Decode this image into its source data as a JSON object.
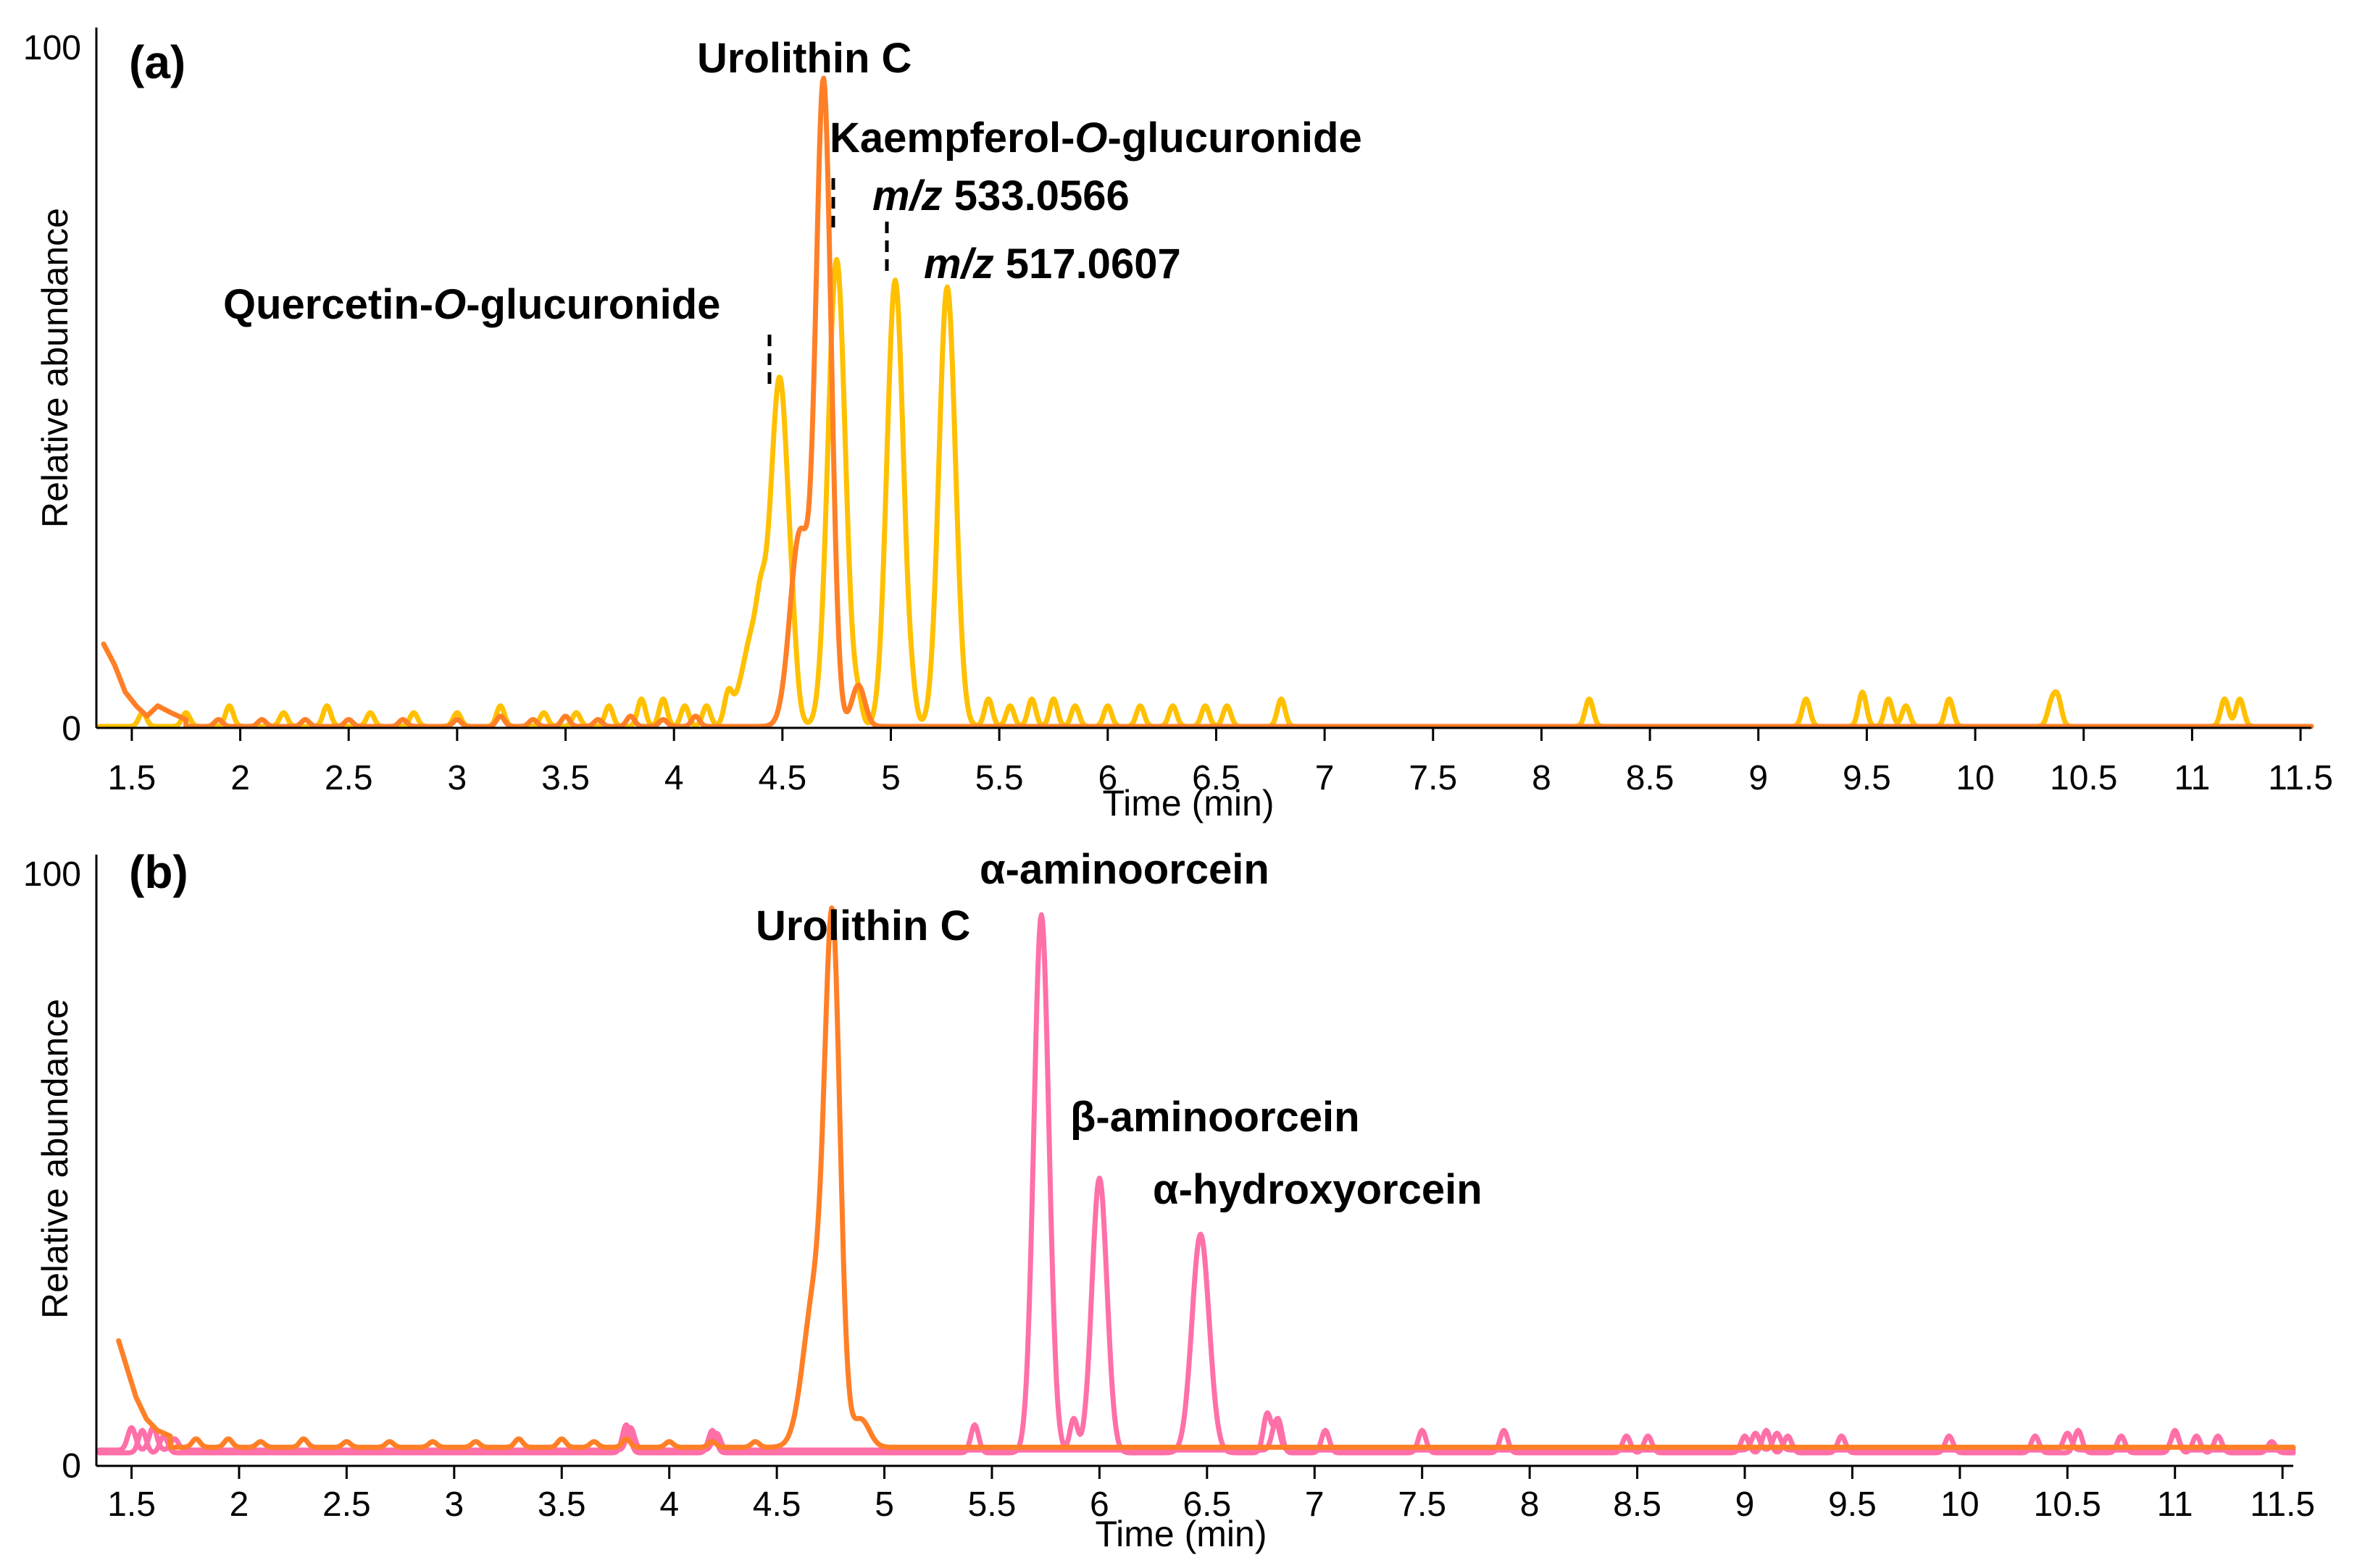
{
  "chart_data": [
    {
      "panel": "(a)",
      "type": "line",
      "xlabel": "Time (min)",
      "ylabel": "Relative abundance",
      "xlim": [
        1.35,
        11.55
      ],
      "ylim": [
        0,
        100
      ],
      "x_ticks": [
        "1.5",
        "2",
        "2.5",
        "3",
        "3.5",
        "4",
        "4.5",
        "5",
        "5.5",
        "6",
        "6.5",
        "7",
        "7.5",
        "8",
        "8.5",
        "9",
        "9.5",
        "10",
        "10.5",
        "11",
        "11.5"
      ],
      "y_ticks": [
        "0",
        "100"
      ],
      "grid": false,
      "colors": {
        "yellow": "#FFC000",
        "orange": "#FF7F27"
      },
      "series": [
        {
          "color": "#FFC000",
          "baseline": 0,
          "noise": [
            [
              1.55,
              2
            ],
            [
              1.75,
              2
            ],
            [
              1.95,
              3
            ],
            [
              2.2,
              2
            ],
            [
              2.4,
              3
            ],
            [
              2.6,
              2
            ],
            [
              2.8,
              2
            ],
            [
              3.0,
              2
            ],
            [
              3.2,
              3
            ],
            [
              3.4,
              2
            ],
            [
              3.55,
              2
            ],
            [
              3.7,
              3
            ],
            [
              3.85,
              4
            ],
            [
              3.95,
              4
            ],
            [
              4.05,
              3
            ],
            [
              4.15,
              3
            ],
            [
              4.25,
              4
            ],
            [
              4.4,
              4
            ],
            [
              4.55,
              3
            ],
            [
              4.85,
              3
            ],
            [
              5.1,
              2
            ],
            [
              5.45,
              4
            ],
            [
              5.55,
              3
            ],
            [
              5.65,
              4
            ],
            [
              5.75,
              4
            ],
            [
              5.85,
              3
            ],
            [
              6.0,
              3
            ],
            [
              6.15,
              3
            ],
            [
              6.3,
              3
            ],
            [
              6.45,
              3
            ],
            [
              6.55,
              3
            ],
            [
              6.8,
              4
            ],
            [
              8.22,
              4
            ],
            [
              9.22,
              4
            ],
            [
              9.48,
              5
            ],
            [
              9.6,
              4
            ],
            [
              9.68,
              3
            ],
            [
              9.88,
              4
            ],
            [
              10.35,
              3
            ],
            [
              10.38,
              4
            ],
            [
              11.15,
              4
            ],
            [
              11.22,
              4
            ]
          ],
          "peaks": [
            [
              4.38,
              15,
              0.06
            ],
            [
              4.49,
              48,
              0.04
            ],
            [
              4.75,
              68,
              0.04
            ],
            [
              5.02,
              65,
              0.038
            ],
            [
              5.26,
              64,
              0.038
            ]
          ]
        },
        {
          "color": "#FF7F27",
          "baseline": 0,
          "start": [
            [
              1.37,
              12
            ],
            [
              1.42,
              9
            ],
            [
              1.47,
              5
            ],
            [
              1.52,
              3
            ],
            [
              1.57,
              1.5
            ],
            [
              1.62,
              3
            ],
            [
              1.68,
              2
            ],
            [
              1.75,
              1
            ]
          ],
          "noise": [
            [
              1.9,
              1
            ],
            [
              2.1,
              1
            ],
            [
              2.3,
              1
            ],
            [
              2.5,
              1
            ],
            [
              2.75,
              1
            ],
            [
              3.0,
              1
            ],
            [
              3.2,
              1.5
            ],
            [
              3.35,
              1
            ],
            [
              3.5,
              1.5
            ],
            [
              3.65,
              1
            ],
            [
              3.8,
              1.5
            ],
            [
              3.95,
              1
            ],
            [
              4.1,
              1.5
            ]
          ],
          "peaks": [
            [
              4.58,
              28,
              0.045
            ],
            [
              4.69,
              93,
              0.035
            ],
            [
              4.85,
              6,
              0.03
            ]
          ]
        }
      ],
      "annotations": [
        {
          "text": "Urolithin C"
        },
        {
          "text_parts": [
            "Kaempferol-",
            "O",
            "-glucuronide"
          ],
          "italic": [
            false,
            true,
            false
          ]
        },
        {
          "text_parts": [
            "m/z",
            " 533.0566"
          ],
          "italic": [
            true,
            false
          ]
        },
        {
          "text_parts": [
            "m/z",
            " 517.0607"
          ],
          "italic": [
            true,
            false
          ]
        },
        {
          "text_parts": [
            "Quercetin-",
            "O",
            "-glucuronide"
          ],
          "italic": [
            false,
            true,
            false
          ]
        }
      ]
    },
    {
      "panel": "(b)",
      "type": "line",
      "xlabel": "Time (min)",
      "ylabel": "Relative abundance",
      "xlim": [
        1.35,
        11.55
      ],
      "ylim": [
        0,
        100
      ],
      "x_ticks": [
        "1.5",
        "2",
        "2.5",
        "3",
        "3.5",
        "4",
        "4.5",
        "5",
        "5.5",
        "6",
        "6.5",
        "7",
        "7.5",
        "8",
        "8.5",
        "9",
        "9.5",
        "10",
        "10.5",
        "11",
        "11.5"
      ],
      "y_ticks": [
        "0",
        "100"
      ],
      "grid": false,
      "colors": {
        "orange": "#FF7F27",
        "pink": "#FF6FA8"
      },
      "series": [
        {
          "color": "#FF6FA8",
          "baseline": 0,
          "noise": [
            [
              1.55,
              4
            ],
            [
              1.65,
              3
            ],
            [
              3.8,
              5
            ],
            [
              4.2,
              4
            ],
            [
              5.42,
              5
            ],
            [
              5.88,
              6
            ],
            [
              6.78,
              7
            ],
            [
              6.83,
              6
            ],
            [
              7.05,
              4
            ],
            [
              7.5,
              4
            ],
            [
              7.88,
              4
            ],
            [
              8.45,
              3
            ],
            [
              8.55,
              3
            ],
            [
              9.0,
              3
            ],
            [
              9.1,
              4
            ],
            [
              9.2,
              3
            ],
            [
              9.45,
              3
            ],
            [
              9.95,
              3
            ],
            [
              10.35,
              3
            ],
            [
              10.55,
              4
            ],
            [
              10.75,
              3
            ],
            [
              11.0,
              4
            ],
            [
              11.1,
              3
            ],
            [
              11.2,
              3
            ],
            [
              11.45,
              2
            ]
          ],
          "peaks": [
            [
              5.73,
              96,
              0.035
            ],
            [
              6.0,
              49,
              0.035
            ],
            [
              6.47,
              39,
              0.04
            ]
          ]
        },
        {
          "color": "#FF6FA8",
          "baseline": 0.5,
          "noise": [
            [
              1.5,
              4
            ],
            [
              1.6,
              4
            ],
            [
              1.7,
              2
            ],
            [
              3.82,
              4
            ],
            [
              4.22,
              3
            ],
            [
              6.82,
              5
            ],
            [
              9.05,
              3
            ],
            [
              9.15,
              3
            ],
            [
              10.5,
              3
            ],
            [
              11.0,
              3
            ]
          ],
          "peaks": []
        },
        {
          "color": "#FF7F27",
          "baseline": 1,
          "start": [
            [
              1.44,
              20
            ],
            [
              1.48,
              15
            ],
            [
              1.52,
              10
            ],
            [
              1.57,
              6
            ],
            [
              1.62,
              4
            ],
            [
              1.68,
              3
            ]
          ],
          "noise": [
            [
              1.8,
              1.5
            ],
            [
              1.95,
              1.5
            ],
            [
              2.1,
              1
            ],
            [
              2.3,
              1.5
            ],
            [
              2.5,
              1
            ],
            [
              2.7,
              1
            ],
            [
              2.9,
              1
            ],
            [
              3.1,
              1
            ],
            [
              3.3,
              1.5
            ],
            [
              3.5,
              1.5
            ],
            [
              3.65,
              1
            ],
            [
              3.8,
              1.5
            ],
            [
              4.0,
              1
            ],
            [
              4.2,
              1
            ],
            [
              4.4,
              1
            ]
          ],
          "peaks": [
            [
              4.68,
              28,
              0.055
            ],
            [
              4.76,
              86,
              0.035
            ],
            [
              4.89,
              5,
              0.04
            ]
          ]
        }
      ],
      "annotations": [
        {
          "text": "α-aminoorcein"
        },
        {
          "text": "Urolithin C"
        },
        {
          "text": "β-aminoorcein"
        },
        {
          "text": "α-hydroxyorcein"
        }
      ]
    }
  ]
}
